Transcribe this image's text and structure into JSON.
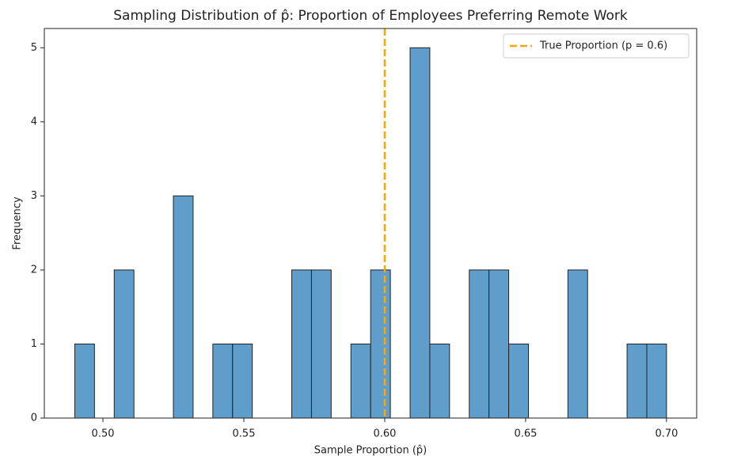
{
  "chart_data": {
    "type": "histogram",
    "title": "Sampling Distribution of p̂: Proportion of Employees Preferring Remote Work",
    "xlabel": "Sample Proportion (p̂)",
    "ylabel": "Frequency",
    "bins": [
      0.49,
      0.497,
      0.504,
      0.511,
      0.518,
      0.525,
      0.532,
      0.539,
      0.546,
      0.553,
      0.56,
      0.567,
      0.574,
      0.581,
      0.588,
      0.595,
      0.602,
      0.609,
      0.616,
      0.623,
      0.63,
      0.637,
      0.644,
      0.651,
      0.658,
      0.665,
      0.672,
      0.679,
      0.686,
      0.693,
      0.7
    ],
    "values": [
      1,
      0,
      2,
      0,
      0,
      3,
      0,
      1,
      1,
      0,
      0,
      2,
      2,
      0,
      1,
      2,
      0,
      5,
      1,
      0,
      2,
      2,
      1,
      0,
      0,
      2,
      0,
      0,
      1,
      1
    ],
    "color": "#5f9ecb",
    "xlim": [
      0.4792,
      0.7107
    ],
    "ylim": [
      0,
      5.26
    ],
    "xticks": [
      {
        "value": 0.5,
        "label": "0.50"
      },
      0.55,
      {
        "value": 0.6,
        "label": "0.60"
      },
      0.65,
      {
        "value": 0.7,
        "label": "0.70"
      }
    ],
    "yticks": [
      0,
      1,
      2,
      3,
      4,
      5
    ],
    "vline": {
      "x": 0.6,
      "label": "True Proportion (p = 0.6)",
      "color": "#ffa500"
    },
    "legend": "upper right"
  }
}
